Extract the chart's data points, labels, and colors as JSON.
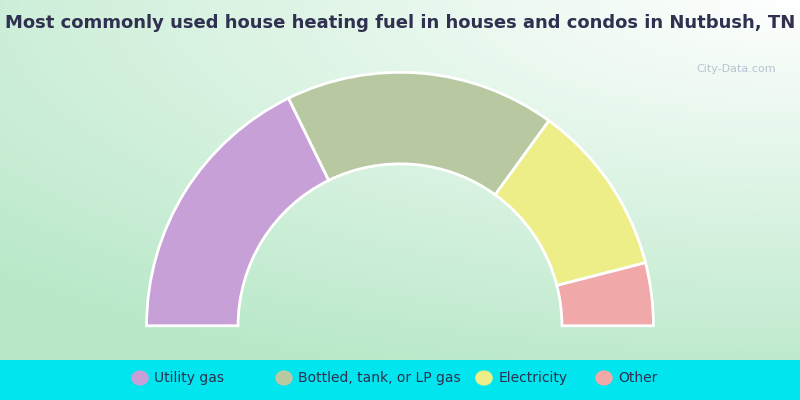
{
  "title": "Most commonly used house heating fuel in houses and condos in Nutbush, TN",
  "segments": [
    {
      "label": "Utility gas",
      "value": 35.5,
      "color": "#c8a0d8"
    },
    {
      "label": "Bottled, tank, or LP gas",
      "value": 34.5,
      "color": "#b8c8a0"
    },
    {
      "label": "Electricity",
      "value": 22.0,
      "color": "#eeee88"
    },
    {
      "label": "Other",
      "value": 8.0,
      "color": "#f0a8a8"
    }
  ],
  "bg_gradient_center": "#ffffff",
  "bg_gradient_edge": "#b8e8c8",
  "bg_bottom_strip": "#00e5ee",
  "title_color": "#303050",
  "legend_color": "#303050",
  "title_fontsize": 13,
  "legend_fontsize": 10,
  "watermark_color": "#aabbcc",
  "watermark_text": "City-Data.com"
}
